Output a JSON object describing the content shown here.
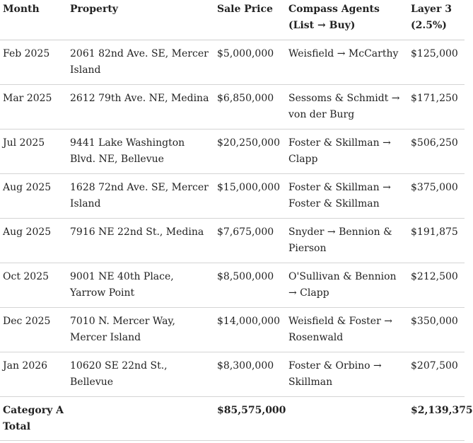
{
  "table": {
    "headers": [
      "Month",
      "Property",
      "Sale Price",
      "Compass Agents (List → Buy)",
      "Layer 3 (2.5%)"
    ],
    "rows": [
      [
        "Feb 2025",
        "2061 82nd Ave. SE, Mercer Island",
        "$5,000,000",
        "Weisfield → McCarthy",
        "$125,000"
      ],
      [
        "Mar 2025",
        "2612 79th Ave. NE, Medina",
        "$6,850,000",
        "Sessoms & Schmidt → von der Burg",
        "$171,250"
      ],
      [
        "Jul 2025",
        "9441 Lake Washington Blvd. NE, Bellevue",
        "$20,250,000",
        "Foster & Skillman → Clapp",
        "$506,250"
      ],
      [
        "Aug 2025",
        "1628 72nd Ave. SE, Mercer Island",
        "$15,000,000",
        "Foster & Skillman → Foster & Skillman",
        "$375,000"
      ],
      [
        "Aug 2025",
        "7916 NE 22nd St., Medina",
        "$7,675,000",
        "Snyder → Bennion & Pierson",
        "$191,875"
      ],
      [
        "Oct 2025",
        "9001 NE 40th Place, Yarrow Point",
        "$8,500,000",
        "O'Sullivan & Bennion → Clapp",
        "$212,500"
      ],
      [
        "Dec 2025",
        "7010 N. Mercer Way, Mercer Island",
        "$14,000,000",
        "Weisfield & Foster → Rosenwald",
        "$350,000"
      ],
      [
        "Jan 2026",
        "10620 SE 22nd St., Bellevue",
        "$8,300,000",
        "Foster & Orbino → Skillman",
        "$207,500"
      ]
    ],
    "total": {
      "label": "Category A Total",
      "sale_price": "$85,575,000",
      "layer3": "$2,139,375"
    }
  }
}
